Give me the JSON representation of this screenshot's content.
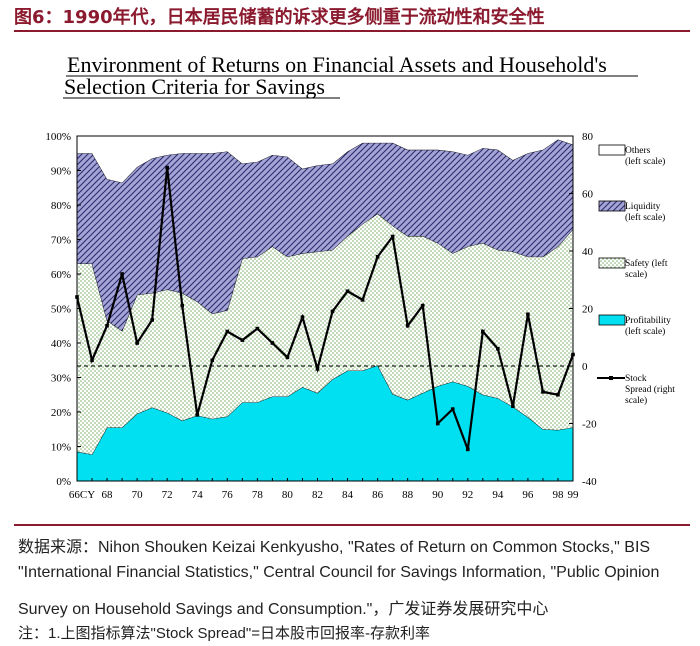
{
  "figure_header": "图6：1990年代，日本居民储蓄的诉求更多侧重于流动性和安全性",
  "chart_data": {
    "type": "area",
    "title_line1": "Environment of Returns on Financial Assets and Household's",
    "title_line2": "Selection Criteria for Savings",
    "x": [
      "66",
      "67",
      "68",
      "69",
      "70",
      "71",
      "72",
      "73",
      "74",
      "75",
      "76",
      "77",
      "78",
      "79",
      "80",
      "81",
      "82",
      "83",
      "84",
      "85",
      "86",
      "87",
      "88",
      "89",
      "90",
      "91",
      "92",
      "93",
      "94",
      "95",
      "96",
      "97",
      "98",
      "99"
    ],
    "x_tick_labels": [
      "66CY",
      "68",
      "70",
      "72",
      "74",
      "76",
      "78",
      "80",
      "82",
      "84",
      "86",
      "88",
      "90",
      "92",
      "94",
      "96",
      "98",
      "99"
    ],
    "left_axis": {
      "ylim": [
        0,
        100
      ],
      "ticks": [
        "0%",
        "10%",
        "20%",
        "30%",
        "40%",
        "50%",
        "60%",
        "70%",
        "80%",
        "90%",
        "100%"
      ]
    },
    "right_axis": {
      "ylim": [
        -40,
        80
      ],
      "ticks": [
        "-40",
        "-20",
        "0",
        "20",
        "40",
        "60",
        "80"
      ]
    },
    "stacked_series": [
      {
        "name": "Profitability",
        "legend": [
          "Profitability",
          "(left scale)"
        ],
        "color": "#00e0f0",
        "values": [
          8.5,
          7.7,
          15.5,
          15.5,
          19.5,
          21.3,
          19.8,
          17.5,
          19,
          18,
          18.7,
          22.8,
          22.8,
          24.5,
          24.5,
          27.2,
          25.5,
          29.5,
          32,
          32,
          33.5,
          25.2,
          23.5,
          25.5,
          27.5,
          28.8,
          27.5,
          25,
          24,
          21.5,
          18.5,
          15,
          14.8,
          15.5
        ]
      },
      {
        "name": "Safety",
        "legend": [
          "Safety (left",
          "scale)"
        ],
        "color": "#d9ebd1",
        "values": [
          54.5,
          55.3,
          31,
          28,
          34.5,
          33.2,
          35.7,
          37,
          33,
          30.5,
          30.8,
          41.7,
          42.2,
          43.5,
          40.5,
          38.8,
          41,
          37.5,
          39,
          42.5,
          44,
          48.8,
          47.5,
          45.5,
          41.5,
          37.2,
          40.5,
          44,
          43,
          45,
          46.5,
          50,
          53.2,
          57.5
        ]
      },
      {
        "name": "Liquidity",
        "legend": [
          "Liquidity",
          "(left scale)"
        ],
        "color": "#9b9bd0",
        "values": [
          32,
          32,
          41,
          43,
          37,
          39,
          39,
          40.5,
          43,
          46.5,
          46,
          27.5,
          27.5,
          26.5,
          29,
          24.5,
          25,
          25,
          24.5,
          23.5,
          20.5,
          24,
          25,
          25,
          27,
          29.5,
          26.5,
          27.5,
          29,
          26.5,
          30,
          31,
          31,
          24.5
        ]
      },
      {
        "name": "Others",
        "legend": [
          "Others",
          "(left scale)"
        ],
        "color": "#ffffff",
        "values": [
          5,
          5,
          12.5,
          13.5,
          9,
          6.5,
          5.5,
          5,
          5,
          5,
          4.5,
          8,
          7.5,
          5.5,
          6,
          9.5,
          8.5,
          8,
          4.5,
          2,
          2,
          2,
          4,
          4,
          4,
          4.5,
          5.5,
          3.5,
          4,
          7,
          5,
          4,
          1,
          2.5
        ]
      }
    ],
    "line_series": {
      "name": "Stock Spread",
      "legend": [
        "Stock",
        "Spread (right",
        "scale)"
      ],
      "color": "#000000",
      "values": [
        24,
        2,
        14,
        32,
        8,
        16,
        69,
        21,
        -17,
        2,
        12,
        9,
        13,
        8,
        3,
        17,
        -1,
        19,
        26,
        23,
        38,
        45,
        14,
        21,
        -20,
        -15,
        -29,
        12,
        6,
        -14,
        18,
        -9,
        -10,
        4
      ]
    },
    "reference_line": {
      "right_value": 0,
      "style": "dashed"
    }
  },
  "source_lines": [
    "数据来源：Nihon Shouken Keizai Kenkyusho, \"Rates of Return on Common Stocks,\" BIS",
    "\"International Financial Statistics,\" Central Council for Savings Information, \"Public Opinion",
    "Survey on Household Savings and Consumption.\"，广发证券发展研究中心"
  ],
  "note": "注：1.上图指标算法\"Stock Spread\"=日本股市回报率-存款利率"
}
